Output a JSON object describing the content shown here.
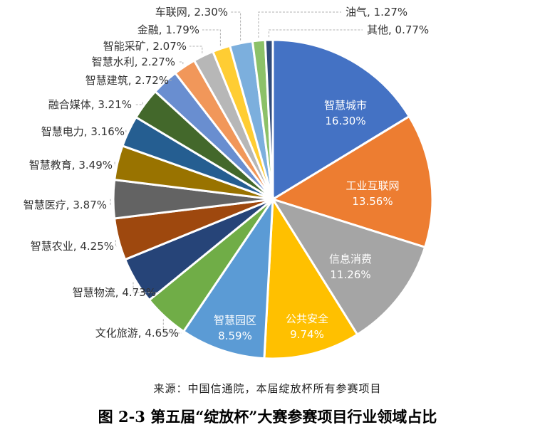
{
  "chart_data": {
    "type": "pie",
    "unit": "%",
    "slices": [
      {
        "label": "智慧城市",
        "value": 16.3,
        "value_text": "16.30%",
        "color": "#4472C4"
      },
      {
        "label": "工业互联网",
        "value": 13.56,
        "value_text": "13.56%",
        "color": "#ED7D31"
      },
      {
        "label": "信息消费",
        "value": 11.26,
        "value_text": "11.26%",
        "color": "#A5A5A5"
      },
      {
        "label": "公共安全",
        "value": 9.74,
        "value_text": "9.74%",
        "color": "#FFC000"
      },
      {
        "label": "智慧园区",
        "value": 8.59,
        "value_text": "8.59%",
        "color": "#5B9BD5"
      },
      {
        "label": "文化旅游",
        "value": 4.65,
        "value_text": "4.65%",
        "color": "#70AD47"
      },
      {
        "label": "智慧物流",
        "value": 4.73,
        "value_text": "4.73%",
        "color": "#264478"
      },
      {
        "label": "智慧农业",
        "value": 4.25,
        "value_text": "4.25%",
        "color": "#9E480E"
      },
      {
        "label": "智慧医疗",
        "value": 3.87,
        "value_text": "3.87%",
        "color": "#636363"
      },
      {
        "label": "智慧教育",
        "value": 3.49,
        "value_text": "3.49%",
        "color": "#997300"
      },
      {
        "label": "智慧电力",
        "value": 3.16,
        "value_text": "3.16%",
        "color": "#255E91"
      },
      {
        "label": "融合媒体",
        "value": 3.21,
        "value_text": "3.21%",
        "color": "#43682B"
      },
      {
        "label": "智慧建筑",
        "value": 2.72,
        "value_text": "2.72%",
        "color": "#698ED0"
      },
      {
        "label": "智慧水利",
        "value": 2.27,
        "value_text": "2.27%",
        "color": "#F1975A"
      },
      {
        "label": "智能采矿",
        "value": 2.07,
        "value_text": "2.07%",
        "color": "#B7B7B7"
      },
      {
        "label": "金融",
        "value": 1.79,
        "value_text": "1.79%",
        "color": "#FFCD33"
      },
      {
        "label": "车联网",
        "value": 2.3,
        "value_text": "2.30%",
        "color": "#7CAFDD"
      },
      {
        "label": "油气",
        "value": 1.27,
        "value_text": "1.27%",
        "color": "#8CC168"
      },
      {
        "label": "其他",
        "value": 0.77,
        "value_text": "0.77%",
        "color": "#2F4B7C"
      }
    ],
    "source_note": "来源：中国信通院，本届绽放杯所有参赛项目",
    "caption": "图 2-3  第五届“绽放杯”大赛参赛项目行业领域占比"
  }
}
